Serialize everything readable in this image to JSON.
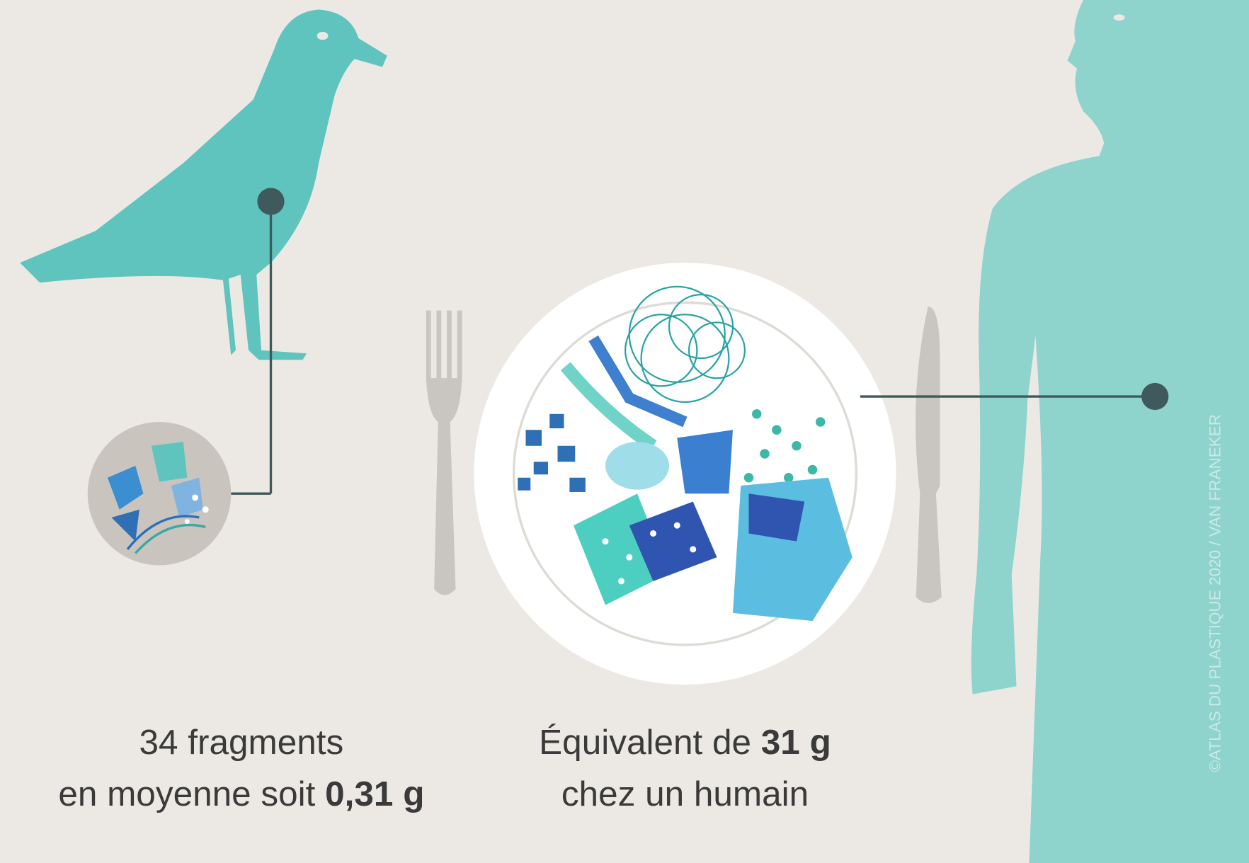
{
  "seagull_caption": {
    "line1": "34 fragments",
    "line2_text": "en moyenne soit",
    "line2_value": "0,31 g"
  },
  "human_caption": {
    "line1_text": "Équivalent de",
    "line1_value": "31 g",
    "line2": "chez un humain"
  },
  "credit": "©ATLAS DU PLASTIQUE 2020 / VAN FRANEKER"
}
